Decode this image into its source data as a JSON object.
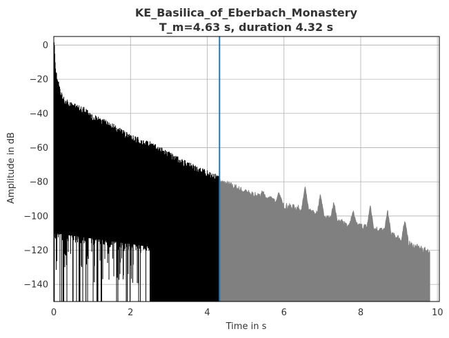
{
  "chart_data": {
    "type": "line",
    "title": "KE_Basilica_of_Eberbach_Monastery",
    "subtitle": "T_m=4.63 s, duration 4.32 s",
    "xlabel": "Time in s",
    "ylabel": "Amplitude in dB",
    "xlim": [
      0,
      10.05
    ],
    "ylim": [
      -150,
      5
    ],
    "x_ticks": [
      0,
      2,
      4,
      6,
      8,
      10
    ],
    "y_ticks": [
      0,
      -20,
      -40,
      -60,
      -80,
      -100,
      -120,
      -140
    ],
    "x_tick_labels": [
      "0",
      "2",
      "4",
      "6",
      "8",
      "10"
    ],
    "y_tick_labels": [
      "0",
      "−20",
      "−40",
      "−60",
      "−80",
      "−100",
      "−120",
      "−140"
    ],
    "grid": true,
    "series": [
      {
        "role": "impulse response (within duration)",
        "color": "#000000",
        "x_start": 0,
        "x_end": 4.32,
        "envelope_x": [
          0,
          0.02,
          0.05,
          0.1,
          0.2,
          0.3,
          0.5,
          0.8,
          1.0,
          1.5,
          2.0,
          2.5,
          3.0,
          3.5,
          4.0,
          4.32
        ],
        "envelope_y": [
          0,
          -2,
          -15,
          -22,
          -30,
          -34,
          -36,
          -39,
          -43,
          -48,
          -55,
          -59,
          -65,
          -71,
          -76,
          -79
        ]
      },
      {
        "role": "impulse response (beyond duration)",
        "color": "#808080",
        "x_start": 4.32,
        "x_end": 9.8,
        "envelope_x": [
          4.32,
          4.6,
          5.0,
          5.5,
          6.0,
          6.5,
          7.0,
          7.5,
          8.0,
          8.5,
          9.0,
          9.4,
          9.8
        ],
        "envelope_y": [
          -80,
          -82,
          -86,
          -90,
          -94,
          -96,
          -100,
          -104,
          -106,
          -108,
          -113,
          -118,
          -121
        ],
        "floor_y": -150
      }
    ],
    "peaks": [
      {
        "x": 5.45,
        "y": -85
      },
      {
        "x": 5.65,
        "y": -89
      },
      {
        "x": 5.87,
        "y": -86
      },
      {
        "x": 6.55,
        "y": -83
      },
      {
        "x": 6.95,
        "y": -87
      },
      {
        "x": 7.3,
        "y": -92
      },
      {
        "x": 7.8,
        "y": -97
      },
      {
        "x": 8.25,
        "y": -94
      },
      {
        "x": 8.7,
        "y": -97
      },
      {
        "x": 9.15,
        "y": -102
      }
    ],
    "vline": {
      "x": 4.32,
      "color": "#1f77b4"
    },
    "colors": {
      "grid": "#b0b0b0",
      "axes": "#000000",
      "text": "#333333"
    }
  }
}
